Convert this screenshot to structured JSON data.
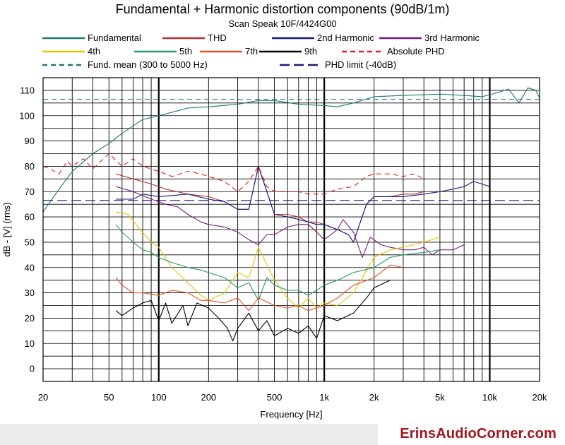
{
  "chart_data": {
    "type": "line",
    "title": "Fundamental + Harmonic distortion components (90dB/1m)",
    "subtitle": "Scan Speak 10F/4424G00",
    "xlabel": "Frequency [Hz]",
    "ylabel": "dB - [V]  (rms)",
    "xscale": "log",
    "xlim": [
      20,
      20000
    ],
    "ylim": [
      -5,
      115
    ],
    "grid": true,
    "legend_position": "top",
    "x_ticks": [
      20,
      50,
      100,
      200,
      500,
      1000,
      2000,
      5000,
      10000,
      20000
    ],
    "x_tick_labels": [
      "20",
      "50",
      "100",
      "200",
      "500",
      "1k",
      "2k",
      "5k",
      "10k",
      "20k"
    ],
    "y_ticks": [
      0,
      10,
      20,
      30,
      40,
      50,
      60,
      70,
      80,
      90,
      100,
      110
    ],
    "y_tick_labels": [
      "0",
      "10",
      "20",
      "30",
      "40",
      "50",
      "60",
      "70",
      "80",
      "90",
      "100",
      "110"
    ],
    "series": [
      {
        "name": "Fundamental",
        "color": "#1a7a72",
        "dash": "solid",
        "x": [
          20,
          25,
          30,
          40,
          50,
          60,
          80,
          100,
          150,
          200,
          300,
          400,
          500,
          700,
          1000,
          1200,
          1500,
          2000,
          3000,
          5000,
          7000,
          9000,
          11000,
          13000,
          15000,
          17000,
          19000,
          20000
        ],
        "y": [
          62,
          71,
          78,
          85,
          89,
          93,
          98.5,
          100,
          103,
          103.5,
          104.5,
          106,
          106,
          104.5,
          104,
          103.5,
          105,
          107.5,
          108,
          108.5,
          108,
          107.5,
          109,
          110.5,
          105,
          111,
          110,
          107
        ]
      },
      {
        "name": "THD",
        "color": "#c03030",
        "dash": "solid",
        "x": [
          55,
          70,
          90,
          110,
          150,
          200,
          250,
          300,
          350,
          400,
          450,
          500,
          600,
          700,
          800,
          900,
          1000,
          1200,
          1400,
          1500,
          1800,
          2000,
          2500,
          3000,
          3500,
          4000
        ],
        "y": [
          77,
          75,
          73,
          71,
          69,
          68,
          66,
          63,
          63,
          80,
          70,
          61,
          61,
          60,
          58,
          58,
          57,
          55,
          53,
          50,
          65,
          68,
          68,
          69,
          69,
          70
        ]
      },
      {
        "name": "2nd Harmonic",
        "color": "#1a1a7e",
        "dash": "solid",
        "x": [
          55,
          70,
          80,
          100,
          150,
          200,
          250,
          300,
          350,
          400,
          450,
          500,
          600,
          700,
          800,
          900,
          1000,
          1200,
          1400,
          1500,
          1800,
          2000,
          2500,
          3000,
          4000,
          5000,
          6000,
          7000,
          8000,
          9000,
          10000
        ],
        "y": [
          67,
          67,
          69,
          68,
          69,
          67,
          66,
          63,
          63,
          80,
          70,
          61,
          60,
          59,
          58,
          57,
          57,
          55,
          53,
          50,
          65,
          68,
          68,
          68,
          69,
          70,
          71,
          72,
          74,
          73,
          72
        ]
      },
      {
        "name": "3rd Harmonic",
        "color": "#7a1a7a",
        "dash": "solid",
        "x": [
          55,
          70,
          90,
          110,
          130,
          150,
          180,
          200,
          250,
          300,
          350,
          400,
          450,
          500,
          600,
          700,
          800,
          900,
          1000,
          1200,
          1300,
          1500,
          1700,
          1900,
          2200,
          2500,
          3000,
          3500,
          4000,
          4500,
          5000,
          6000,
          7000
        ],
        "y": [
          72,
          70,
          67,
          65,
          64,
          61,
          58,
          57,
          56,
          54,
          51,
          49,
          53,
          53,
          56,
          57,
          57,
          54,
          51,
          55,
          59,
          54,
          44,
          52,
          49,
          48,
          47,
          47,
          48,
          45,
          47,
          47,
          49
        ]
      },
      {
        "name": "4th",
        "color": "#e8c400",
        "dash": "solid",
        "x": [
          55,
          65,
          75,
          90,
          100,
          120,
          150,
          180,
          200,
          250,
          300,
          350,
          400,
          500,
          600,
          700,
          800,
          900,
          1000,
          1200,
          1500,
          2000,
          2500,
          3000,
          4000,
          5000
        ],
        "y": [
          62,
          61,
          56,
          50,
          48,
          40,
          34,
          29,
          27,
          30,
          38,
          36,
          48,
          35,
          28,
          24,
          28,
          24,
          26,
          25,
          30,
          44,
          47,
          48,
          50,
          52
        ]
      },
      {
        "name": "5th",
        "color": "#2a9a6a",
        "dash": "solid",
        "x": [
          55,
          60,
          70,
          80,
          90,
          100,
          120,
          150,
          180,
          200,
          250,
          300,
          350,
          400,
          450,
          500,
          600,
          700,
          800,
          900,
          1000,
          1200,
          1500,
          2000,
          2500,
          3000,
          4000,
          5000
        ],
        "y": [
          57,
          54,
          50,
          47,
          46,
          44,
          42,
          40,
          39,
          38,
          36,
          32,
          34,
          27,
          36,
          33,
          31,
          31,
          29,
          31,
          33,
          35,
          38,
          40,
          44,
          45,
          46,
          47
        ]
      },
      {
        "name": "7th",
        "color": "#e85020",
        "dash": "solid",
        "x": [
          55,
          60,
          70,
          80,
          100,
          120,
          150,
          180,
          200,
          250,
          300,
          350,
          400,
          500,
          600,
          700,
          800,
          1000,
          1200,
          1500,
          2000,
          2500,
          3000
        ],
        "y": [
          36,
          33,
          30,
          30,
          29,
          31,
          30,
          27,
          27,
          26,
          28,
          23,
          28,
          25,
          24,
          25,
          23,
          25,
          28,
          33,
          36,
          41,
          40
        ]
      },
      {
        "name": "9th",
        "color": "#000000",
        "dash": "solid",
        "x": [
          55,
          60,
          70,
          80,
          90,
          100,
          110,
          120,
          140,
          150,
          170,
          200,
          230,
          260,
          280,
          300,
          350,
          400,
          450,
          500,
          600,
          700,
          800,
          900,
          1000,
          1200,
          1500,
          1800,
          2000,
          2500
        ],
        "y": [
          23,
          21,
          24,
          26,
          27,
          19,
          26,
          18,
          25,
          17,
          26,
          24,
          20,
          16,
          11,
          16,
          22,
          15,
          19,
          13,
          16,
          14,
          17,
          12,
          21,
          19,
          22,
          28,
          32,
          35
        ]
      },
      {
        "name": "Absolute PHD",
        "color": "#e02020",
        "dash": "dashed",
        "x": [
          20,
          22,
          25,
          28,
          30,
          35,
          40,
          50,
          60,
          70,
          80,
          100,
          120,
          150,
          180,
          200,
          250,
          300,
          350,
          400,
          450,
          500,
          600,
          700,
          800,
          1000,
          1200,
          1500,
          1800,
          2000,
          2500,
          3000,
          3500,
          4000
        ],
        "y": [
          80,
          79,
          77,
          82,
          80,
          83,
          79,
          85,
          80,
          83,
          80,
          78,
          76,
          78,
          77,
          76,
          74,
          70,
          74,
          80,
          72,
          70,
          70,
          70,
          69,
          69,
          71,
          72,
          76,
          77,
          77,
          76,
          77,
          75
        ]
      },
      {
        "name": "Fund. mean (300 to 5000 Hz)",
        "color": "#1a7a72",
        "dash": "dashed",
        "x": [
          20,
          20000
        ],
        "y": [
          106.5,
          106.5
        ]
      },
      {
        "name": "PHD limit (-40dB)",
        "color": "#1a1a7e",
        "dash": "long-dashed",
        "x": [
          20,
          20000
        ],
        "y": [
          66.5,
          66.5
        ]
      }
    ]
  },
  "footer": {
    "brand": "ErinsAudioCorner.com"
  }
}
